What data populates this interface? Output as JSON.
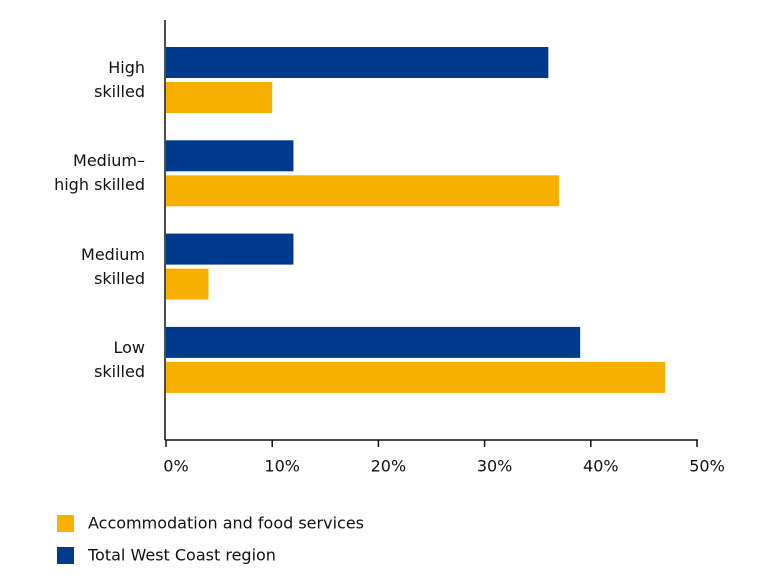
{
  "chart_data": {
    "type": "bar",
    "orientation": "horizontal",
    "categories": [
      "High\nskilled",
      "Medium–\nhigh skilled",
      "Medium\nskilled",
      "Low\nskilled"
    ],
    "series": [
      {
        "name": "Accommodation and food services",
        "color": "#f7b000",
        "values": [
          10,
          37,
          4,
          47
        ]
      },
      {
        "name": "Total West Coast region",
        "color": "#003a8c",
        "values": [
          36,
          12,
          12,
          39
        ]
      }
    ],
    "xlim": [
      0,
      50
    ],
    "xticks": [
      {
        "value": 0,
        "label": "0%"
      },
      {
        "value": 10,
        "label": "10%"
      },
      {
        "value": 20,
        "label": "20%"
      },
      {
        "value": 30,
        "label": "30%"
      },
      {
        "value": 40,
        "label": "40%"
      },
      {
        "value": 50,
        "label": "50%"
      }
    ]
  }
}
